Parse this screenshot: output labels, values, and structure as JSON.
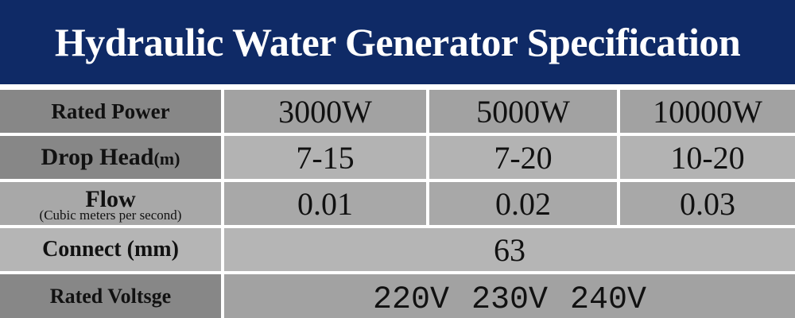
{
  "header": {
    "title": "Hydraulic Water Generator Specification"
  },
  "table": {
    "rows": [
      {
        "label": "Rated Power",
        "values": [
          "3000W",
          "5000W",
          "10000W"
        ]
      },
      {
        "label": "Drop Head",
        "unit": "(m)",
        "values": [
          "7-15",
          "7-20",
          "10-20"
        ]
      },
      {
        "label": "Flow",
        "note": "(Cubic meters per second)",
        "values": [
          "0.01",
          "0.02",
          "0.03"
        ]
      },
      {
        "label": "Connect (mm)",
        "value": "63"
      },
      {
        "label": "Rated Voltsge",
        "values": [
          "220V",
          "230V",
          "240V"
        ]
      }
    ]
  }
}
